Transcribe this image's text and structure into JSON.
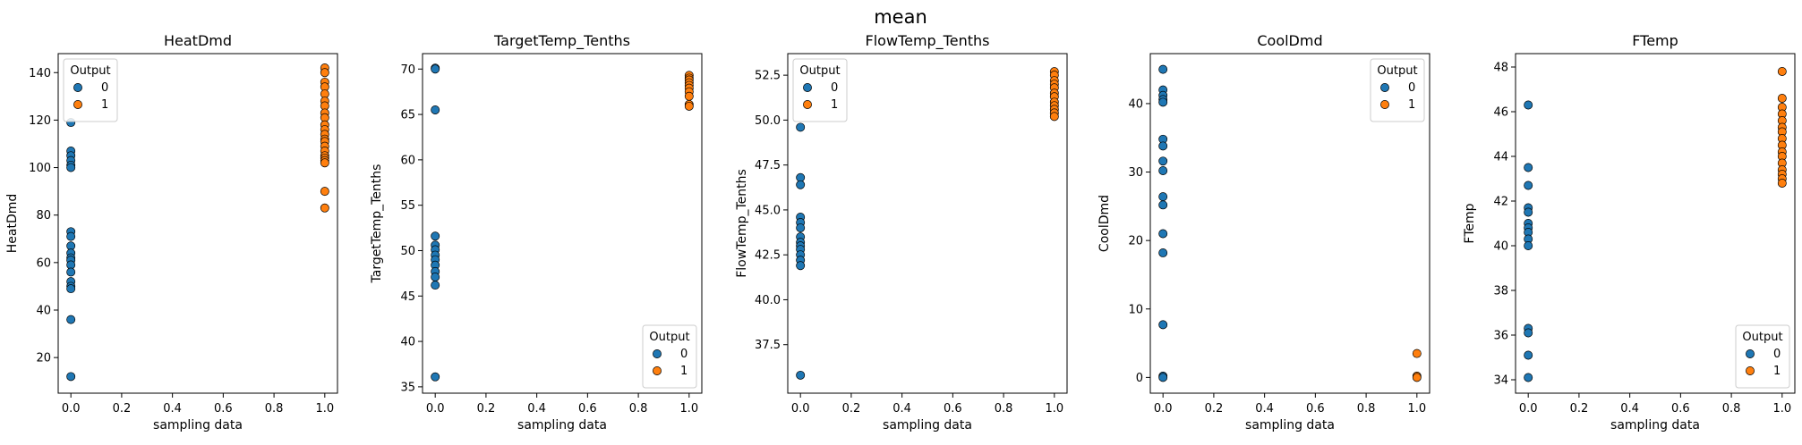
{
  "figure": {
    "title": "mean"
  },
  "colors": {
    "class0": "#1f77b4",
    "class1": "#ff7f0e",
    "edge": "#000000"
  },
  "chart_data": [
    {
      "type": "scatter",
      "title": "HeatDmd",
      "xlabel": "sampling data",
      "ylabel": "HeatDmd",
      "xlim": [
        -0.05,
        1.05
      ],
      "ylim": [
        5,
        148
      ],
      "xticks": [
        "0.0",
        "0.2",
        "0.4",
        "0.6",
        "0.8",
        "1.0"
      ],
      "yticks": [
        "20",
        "40",
        "60",
        "80",
        "100",
        "120",
        "140"
      ],
      "legend": {
        "title": "Output",
        "position": "upper-left",
        "labels": [
          "0",
          "1"
        ]
      },
      "series": [
        {
          "name": "0",
          "x": 0,
          "y": [
            119,
            107,
            105,
            103,
            101,
            100,
            73,
            71,
            67,
            64,
            62,
            61,
            59,
            56,
            52,
            50,
            49,
            36,
            12
          ]
        },
        {
          "name": "1",
          "x": 1,
          "y": [
            142,
            140,
            136,
            134,
            131,
            128,
            126,
            123,
            121,
            118,
            116,
            114,
            112,
            111,
            109,
            107,
            105,
            104,
            103,
            102,
            90,
            83
          ]
        }
      ]
    },
    {
      "type": "scatter",
      "title": "TargetTemp_Tenths",
      "xlabel": "sampling data",
      "ylabel": "TargetTemp_Tenths",
      "xlim": [
        -0.05,
        1.05
      ],
      "ylim": [
        34.3,
        71.7
      ],
      "xticks": [
        "0.0",
        "0.2",
        "0.4",
        "0.6",
        "0.8",
        "1.0"
      ],
      "yticks": [
        "35",
        "40",
        "45",
        "50",
        "55",
        "60",
        "65",
        "70"
      ],
      "legend": {
        "title": "Output",
        "position": "lower-right",
        "labels": [
          "0",
          "1"
        ]
      },
      "series": [
        {
          "name": "0",
          "x": 0,
          "y": [
            70.1,
            70.0,
            65.5,
            51.6,
            50.6,
            50.1,
            49.5,
            49.0,
            48.4,
            47.7,
            47.1,
            46.2,
            36.1
          ]
        },
        {
          "name": "1",
          "x": 1,
          "y": [
            69.3,
            69.0,
            68.8,
            68.5,
            68.2,
            67.9,
            67.5,
            67.0,
            66.1,
            65.9
          ]
        }
      ]
    },
    {
      "type": "scatter",
      "title": "FlowTemp_Tenths",
      "xlabel": "sampling data",
      "ylabel": "FlowTemp_Tenths",
      "xlim": [
        -0.05,
        1.05
      ],
      "ylim": [
        34.8,
        53.7
      ],
      "xticks": [
        "0.0",
        "0.2",
        "0.4",
        "0.6",
        "0.8",
        "1.0"
      ],
      "yticks": [
        "37.5",
        "40.0",
        "42.5",
        "45.0",
        "47.5",
        "50.0",
        "52.5"
      ],
      "legend": {
        "title": "Output",
        "position": "upper-left",
        "labels": [
          "0",
          "1"
        ]
      },
      "series": [
        {
          "name": "0",
          "x": 0,
          "y": [
            49.6,
            46.8,
            46.4,
            44.6,
            44.3,
            44.0,
            43.5,
            43.2,
            43.0,
            42.8,
            42.5,
            42.2,
            41.9,
            35.8
          ]
        },
        {
          "name": "1",
          "x": 1,
          "y": [
            52.7,
            52.5,
            52.2,
            52.0,
            51.8,
            51.5,
            51.3,
            51.0,
            50.8,
            50.6,
            50.4,
            50.2
          ]
        }
      ]
    },
    {
      "type": "scatter",
      "title": "CoolDmd",
      "xlabel": "sampling data",
      "ylabel": "CoolDmd",
      "xlim": [
        -0.05,
        1.05
      ],
      "ylim": [
        -2.3,
        47.3
      ],
      "xticks": [
        "0.0",
        "0.2",
        "0.4",
        "0.6",
        "0.8",
        "1.0"
      ],
      "yticks": [
        "0",
        "10",
        "20",
        "30",
        "40"
      ],
      "legend": {
        "title": "Output",
        "position": "upper-right",
        "labels": [
          "0",
          "1"
        ]
      },
      "series": [
        {
          "name": "0",
          "x": 0,
          "y": [
            45.0,
            42.0,
            41.2,
            40.6,
            40.2,
            34.8,
            33.8,
            31.6,
            30.2,
            26.4,
            25.2,
            21.0,
            18.2,
            7.7,
            0.2,
            0.0
          ]
        },
        {
          "name": "1",
          "x": 1,
          "y": [
            3.5,
            0.2,
            0.0
          ]
        }
      ]
    },
    {
      "type": "scatter",
      "title": "FTemp",
      "xlabel": "sampling data",
      "ylabel": "FTemp",
      "xlim": [
        -0.05,
        1.05
      ],
      "ylim": [
        33.4,
        48.6
      ],
      "xticks": [
        "0.0",
        "0.2",
        "0.4",
        "0.6",
        "0.8",
        "1.0"
      ],
      "yticks": [
        "34",
        "36",
        "38",
        "40",
        "42",
        "44",
        "46",
        "48"
      ],
      "legend": {
        "title": "Output",
        "position": "lower-right",
        "labels": [
          "0",
          "1"
        ]
      },
      "series": [
        {
          "name": "0",
          "x": 0,
          "y": [
            46.3,
            43.5,
            42.7,
            41.7,
            41.5,
            41.0,
            40.8,
            40.6,
            40.3,
            40.0,
            36.3,
            36.1,
            35.1,
            34.1
          ]
        },
        {
          "name": "1",
          "x": 1,
          "y": [
            47.8,
            46.6,
            46.2,
            45.9,
            45.6,
            45.3,
            45.1,
            44.8,
            44.5,
            44.2,
            44.0,
            43.7,
            43.4,
            43.2,
            43.0,
            42.8
          ]
        }
      ]
    }
  ]
}
